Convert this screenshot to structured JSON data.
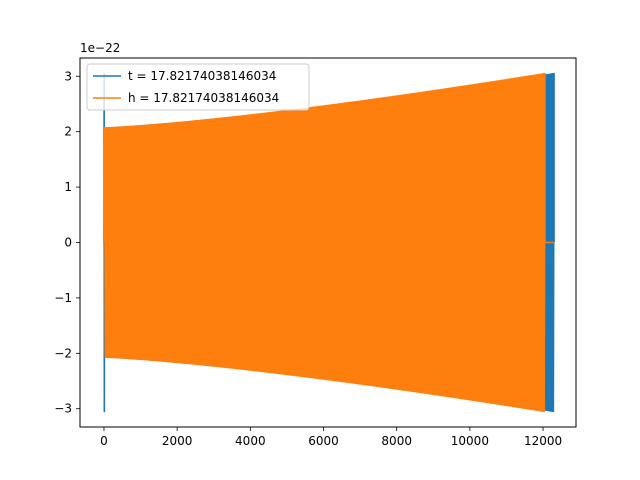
{
  "chart_data": {
    "type": "line",
    "title": "",
    "xlabel": "",
    "ylabel": "",
    "xlim": [
      -655,
      12900
    ],
    "ylim": [
      -3.33e-22,
      3.33e-22
    ],
    "y_offset_text": "1e−22",
    "x_ticks": [
      0,
      2000,
      4000,
      6000,
      8000,
      10000,
      12000
    ],
    "x_tick_labels": [
      "0",
      "2000",
      "4000",
      "6000",
      "8000",
      "10000",
      "12000"
    ],
    "y_ticks": [
      -3e-22,
      -2e-22,
      -1e-22,
      0,
      1e-22,
      2e-22,
      3e-22
    ],
    "y_tick_labels": [
      "−3",
      "−2",
      "−1",
      "0",
      "1",
      "2",
      "3"
    ],
    "grid": false,
    "legend_position": "top-left",
    "series": [
      {
        "name": "t = 17.82174038146034",
        "color": "#1f77b4",
        "x_start": 0,
        "x_end": 12300,
        "amplitude_start": 2.07e-22,
        "amplitude_end": 3.05e-22,
        "initial_spike": 3.05e-22,
        "cycles": 330
      },
      {
        "name": "h = 17.82174038146034",
        "color": "#ff7f0e",
        "x_start": 0,
        "x_end": 12050,
        "amplitude_start": 2.07e-22,
        "amplitude_end": 3.05e-22,
        "cycles": 320,
        "tail_end": 12300
      }
    ]
  }
}
